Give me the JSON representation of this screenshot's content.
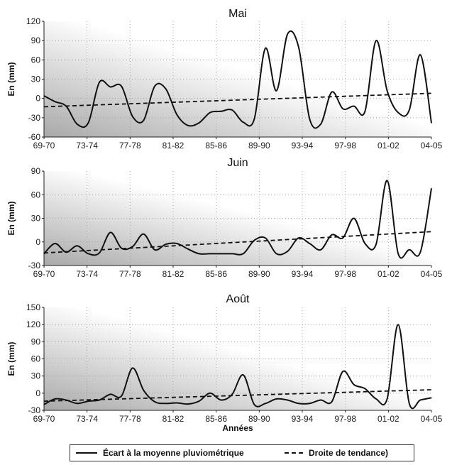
{
  "chart_data": [
    {
      "type": "line",
      "title": "Mai",
      "xlabel": "",
      "ylabel": "En (mm)",
      "ylim": [
        -60,
        120
      ],
      "yticks": [
        -60,
        -30,
        0,
        30,
        60,
        90,
        120
      ],
      "x_tick_labels": [
        "69-70",
        "73-74",
        "77-78",
        "81-82",
        "85-86",
        "89-90",
        "93-94",
        "97-98",
        "01-02",
        "04-05"
      ],
      "grid": true,
      "series": [
        {
          "name": "Écart à la moyenne pluviométrique",
          "style": "solid",
          "x": [
            0,
            1,
            2,
            3,
            4,
            5,
            6,
            7,
            8,
            9,
            10,
            11,
            12,
            13,
            14,
            15,
            16,
            17,
            18,
            19,
            20,
            21,
            22,
            23,
            24,
            25,
            26,
            27,
            28,
            29,
            30,
            31,
            32,
            33,
            34,
            35
          ],
          "values": [
            4,
            -5,
            -12,
            -40,
            -38,
            25,
            18,
            19,
            -28,
            -34,
            19,
            15,
            -25,
            -42,
            -38,
            -22,
            -20,
            -18,
            -37,
            -32,
            78,
            12,
            100,
            80,
            -32,
            -40,
            10,
            -16,
            -12,
            -20,
            90,
            12,
            -22,
            -18,
            68,
            -38
          ]
        },
        {
          "name": "Droite de tendance)",
          "style": "dashed",
          "x": [
            0,
            35
          ],
          "values": [
            -13,
            8
          ]
        }
      ]
    },
    {
      "type": "line",
      "title": "Juin",
      "xlabel": "",
      "ylabel": "En (mm)",
      "ylim": [
        -30,
        90
      ],
      "yticks": [
        -30,
        0,
        30,
        60,
        90
      ],
      "x_tick_labels": [
        "69-70",
        "73-74",
        "77-78",
        "81-82",
        "85-86",
        "89-90",
        "93-94",
        "97-98",
        "01-02",
        "04-05"
      ],
      "grid": true,
      "series": [
        {
          "name": "Écart à la moyenne pluviométrique",
          "style": "solid",
          "x": [
            0,
            1,
            2,
            3,
            4,
            5,
            6,
            7,
            8,
            9,
            10,
            11,
            12,
            13,
            14,
            15,
            16,
            17,
            18,
            19,
            20,
            21,
            22,
            23,
            24,
            25,
            26,
            27,
            28,
            29,
            30,
            31,
            32,
            33,
            34,
            35
          ],
          "values": [
            -15,
            -2,
            -13,
            -5,
            -15,
            -14,
            12,
            -8,
            -6,
            10,
            -10,
            -3,
            -2,
            -9,
            -15,
            -15,
            -15,
            -15,
            -15,
            2,
            5,
            -15,
            -12,
            5,
            -2,
            -10,
            9,
            5,
            30,
            -2,
            -3,
            78,
            -15,
            -10,
            -13,
            68
          ]
        },
        {
          "name": "Droite de tendance)",
          "style": "dashed",
          "x": [
            0,
            35
          ],
          "values": [
            -14,
            13
          ]
        }
      ]
    },
    {
      "type": "line",
      "title": "Août",
      "xlabel": "Années",
      "ylabel": "En (mm)",
      "ylim": [
        -30,
        150
      ],
      "yticks": [
        -30,
        0,
        30,
        60,
        90,
        120,
        150
      ],
      "x_tick_labels": [
        "69-70",
        "73-74",
        "77-78",
        "81-82",
        "85-86",
        "89-90",
        "93-94",
        "97-98",
        "01-02",
        "04-05"
      ],
      "grid": true,
      "series": [
        {
          "name": "Écart à la moyenne pluviométrique",
          "style": "solid",
          "x": [
            0,
            1,
            2,
            3,
            4,
            5,
            6,
            7,
            8,
            9,
            10,
            11,
            12,
            13,
            14,
            15,
            16,
            17,
            18,
            19,
            20,
            21,
            22,
            23,
            24,
            25,
            26,
            27,
            28,
            29,
            30,
            31,
            32,
            33,
            34,
            35
          ],
          "values": [
            -20,
            -10,
            -12,
            -18,
            -14,
            -12,
            -2,
            -5,
            44,
            5,
            -15,
            -18,
            -17,
            -19,
            -14,
            0,
            -12,
            -2,
            32,
            -20,
            -18,
            -10,
            -12,
            -18,
            -18,
            -12,
            -15,
            38,
            15,
            8,
            -10,
            -10,
            120,
            -18,
            -12,
            -8
          ]
        },
        {
          "name": "Droite de tendance)",
          "style": "dashed",
          "x": [
            0,
            35
          ],
          "values": [
            -14,
            6
          ]
        }
      ]
    }
  ],
  "legend": {
    "solid_label": "Écart à la moyenne pluviométrique",
    "dashed_label": "Droite de tendance)"
  },
  "colors": {
    "line": "#111111",
    "plot_shade_dark": "#a9a9a9",
    "plot_shade_light": "#ffffff",
    "grid": "#9a9a9a"
  }
}
